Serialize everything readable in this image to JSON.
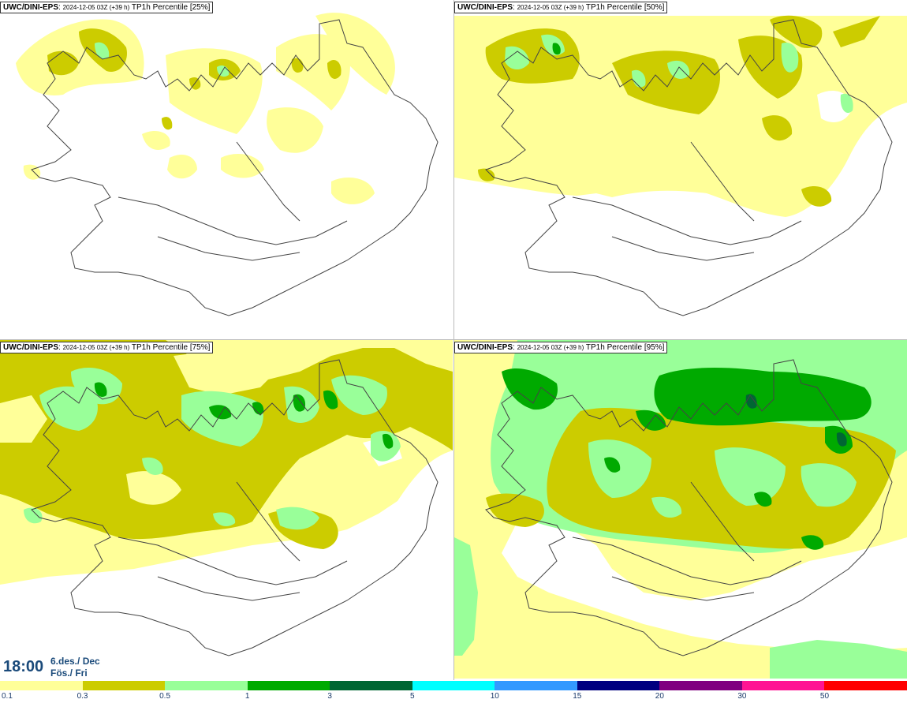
{
  "panels": [
    {
      "source": "UWC/DINI-EPS",
      "run": "2024-12-05 03Z (+39 h)",
      "field": "TP1h Percentile [25%]"
    },
    {
      "source": "UWC/DINI-EPS",
      "run": "2024-12-05 03Z (+39 h)",
      "field": "TP1h Percentile [50%]"
    },
    {
      "source": "UWC/DINI-EPS",
      "run": "2024-12-05 03Z (+39 h)",
      "field": "TP1h Percentile [75%]"
    },
    {
      "source": "UWC/DINI-EPS",
      "run": "2024-12-05 03Z (+39 h)",
      "field": "TP1h Percentile [95%]"
    }
  ],
  "timestamp": {
    "time": "18:00",
    "date_line1": "6.des./ Dec",
    "date_line2": "Fös./ Fri"
  },
  "legend": {
    "colors": [
      "#ffff99",
      "#cccc00",
      "#99ff99",
      "#00aa00",
      "#006633",
      "#00ffff",
      "#3399ff",
      "#000080",
      "#800080",
      "#ff1493",
      "#ff0000"
    ],
    "labels": [
      "0.1",
      "0.3",
      "0.5",
      "1",
      "3",
      "5",
      "10",
      "15",
      "20",
      "30",
      "50"
    ]
  },
  "colors": {
    "title_text": "#1a4a7a",
    "coast": "#444444",
    "yellow": "#ffff99",
    "olive": "#cccc00",
    "lightgreen": "#99ff99",
    "green": "#00aa00",
    "darkgreen": "#006633"
  }
}
